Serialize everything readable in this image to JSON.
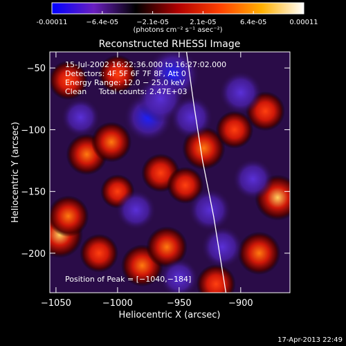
{
  "chart_data": {
    "type": "heatmap",
    "title": "Reconstructed RHESSI Image",
    "xlabel": "Heliocentric X (arcsec)",
    "ylabel": "Heliocentric Y (arcsec)",
    "xlim": [
      -1055,
      -860
    ],
    "ylim": [
      -232,
      -37
    ],
    "x_ticks": [
      -1050,
      -1000,
      -950,
      -900
    ],
    "x_tick_labels": [
      "−1050",
      "−1000",
      "−950",
      "−900"
    ],
    "y_ticks": [
      -50,
      -100,
      -150,
      -200
    ],
    "y_tick_labels": [
      "−50",
      "−100",
      "−150",
      "−200"
    ],
    "colorbar": {
      "min": -0.00011,
      "max": 0.00011,
      "tick_labels": [
        "-0.00011",
        "−6.4e-05",
        "−2.1e-05",
        "2.1e-05",
        "6.4e-05",
        "0.00011"
      ],
      "units_label": "(photons cm⁻² s⁻¹ asec⁻²)",
      "colors": [
        "#0000ff",
        "#6a1fc0",
        "#000000",
        "#b00000",
        "#ff4000",
        "#ffb000",
        "#ffffff"
      ]
    },
    "annotations": {
      "time_range": "15-Jul-2002 16:22:36.000 to 16:27:02.000",
      "detectors": "Detectors: 4F 5F 6F 7F 8F, Att 0",
      "energy": "Energy Range: 12.0 − 25.0 keV",
      "clean": "Clean     Total counts: 2.47E+03",
      "peak": "Position of Peak = [−1040,−184]"
    },
    "peak_position": [
      -1040,
      -184
    ],
    "sources": [
      {
        "x": -1047,
        "y": -185,
        "v": 1.0
      },
      {
        "x": -1040,
        "y": -170,
        "v": 0.7
      },
      {
        "x": -1040,
        "y": -60,
        "v": 0.6
      },
      {
        "x": -1025,
        "y": -120,
        "v": 0.7
      },
      {
        "x": -1005,
        "y": -110,
        "v": 0.65
      },
      {
        "x": -1000,
        "y": -55,
        "v": 0.55
      },
      {
        "x": -980,
        "y": -210,
        "v": 0.75
      },
      {
        "x": -960,
        "y": -195,
        "v": 0.7
      },
      {
        "x": -1015,
        "y": -200,
        "v": 0.55
      },
      {
        "x": -965,
        "y": -135,
        "v": 0.55
      },
      {
        "x": -945,
        "y": -145,
        "v": 0.45
      },
      {
        "x": -930,
        "y": -115,
        "v": 0.8
      },
      {
        "x": -920,
        "y": -225,
        "v": 0.6
      },
      {
        "x": -885,
        "y": -200,
        "v": 0.8
      },
      {
        "x": -870,
        "y": -155,
        "v": 0.95
      },
      {
        "x": -880,
        "y": -85,
        "v": 0.6
      },
      {
        "x": -905,
        "y": -100,
        "v": 0.5
      },
      {
        "x": -1000,
        "y": -150,
        "v": 0.3
      },
      {
        "x": -975,
        "y": -90,
        "v": -0.8
      },
      {
        "x": -955,
        "y": -55,
        "v": -1.0
      },
      {
        "x": -965,
        "y": -75,
        "v": -0.7
      },
      {
        "x": -940,
        "y": -90,
        "v": -0.5
      },
      {
        "x": -900,
        "y": -70,
        "v": -0.5
      },
      {
        "x": -890,
        "y": -140,
        "v": -0.4
      },
      {
        "x": -925,
        "y": -165,
        "v": -0.5
      },
      {
        "x": -915,
        "y": -195,
        "v": -0.45
      },
      {
        "x": -985,
        "y": -165,
        "v": -0.35
      },
      {
        "x": -1030,
        "y": -90,
        "v": -0.3
      },
      {
        "x": -950,
        "y": -220,
        "v": -0.3
      }
    ],
    "limb_curve": [
      [
        -944,
        -37
      ],
      [
        -938,
        -80
      ],
      [
        -931,
        -125
      ],
      [
        -922,
        -170
      ],
      [
        -912,
        -232
      ]
    ]
  },
  "timestamp": "17-Apr-2013 22:49"
}
